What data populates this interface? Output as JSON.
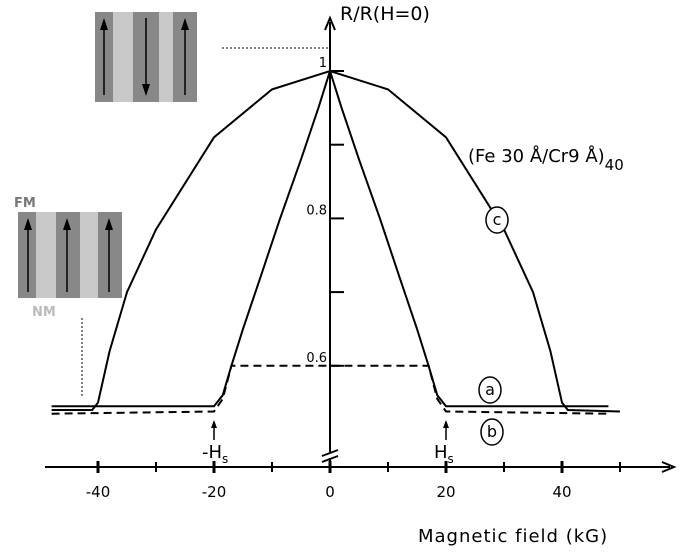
{
  "chart_data": {
    "type": "line",
    "y_label": "R/R(H=0)",
    "x_label": "Magnetic field (kG)",
    "sample": {
      "text": "(Fe 30 Å/Cr9 Å)",
      "sub": "40"
    },
    "layer_labels": {
      "top": "FM",
      "bottom": "NM"
    },
    "annotations": [
      {
        "x": -20,
        "text": "-H",
        "sub": "s"
      },
      {
        "x": 20,
        "text": "H",
        "sub": "s"
      }
    ],
    "xlim": [
      -50,
      60
    ],
    "ylim": [
      0.5,
      1.05
    ],
    "xticks": [
      -40,
      -20,
      0,
      20,
      40
    ],
    "xticks_minor": [
      -30,
      -10,
      10,
      30,
      50
    ],
    "yticks": [
      0.6,
      0.8,
      1
    ],
    "yticks_minor": [
      0.7,
      0.9
    ],
    "series": [
      {
        "name": "a",
        "color": "#000000",
        "dash": false,
        "x": [
          -48,
          -20,
          -18.5,
          -17,
          -15,
          -12,
          -8.6,
          -5,
          -2,
          0,
          2,
          5,
          8.6,
          12,
          15,
          17,
          18.5,
          20,
          48
        ],
        "values": [
          0.545,
          0.545,
          0.56,
          0.6,
          0.65,
          0.72,
          0.8,
          0.88,
          0.95,
          1,
          0.95,
          0.88,
          0.8,
          0.72,
          0.65,
          0.6,
          0.56,
          0.545,
          0.545
        ]
      },
      {
        "name": "b",
        "color": "#000000",
        "dash": true,
        "x": [
          -48,
          -20,
          -18.5,
          -17,
          17,
          18.5,
          20,
          48
        ],
        "values": [
          0.535,
          0.538,
          0.555,
          0.6,
          0.6,
          0.555,
          0.538,
          0.535
        ]
      },
      {
        "name": "c",
        "color": "#000000",
        "dash": false,
        "x": [
          -48,
          -41,
          -40,
          -38,
          -35,
          -30,
          -20,
          -10,
          0,
          10,
          20,
          30,
          35,
          38,
          40,
          41,
          50
        ],
        "values": [
          0.54,
          0.54,
          0.55,
          0.62,
          0.7,
          0.785,
          0.91,
          0.975,
          1,
          0.975,
          0.91,
          0.785,
          0.7,
          0.62,
          0.55,
          0.54,
          0.538
        ]
      }
    ]
  }
}
